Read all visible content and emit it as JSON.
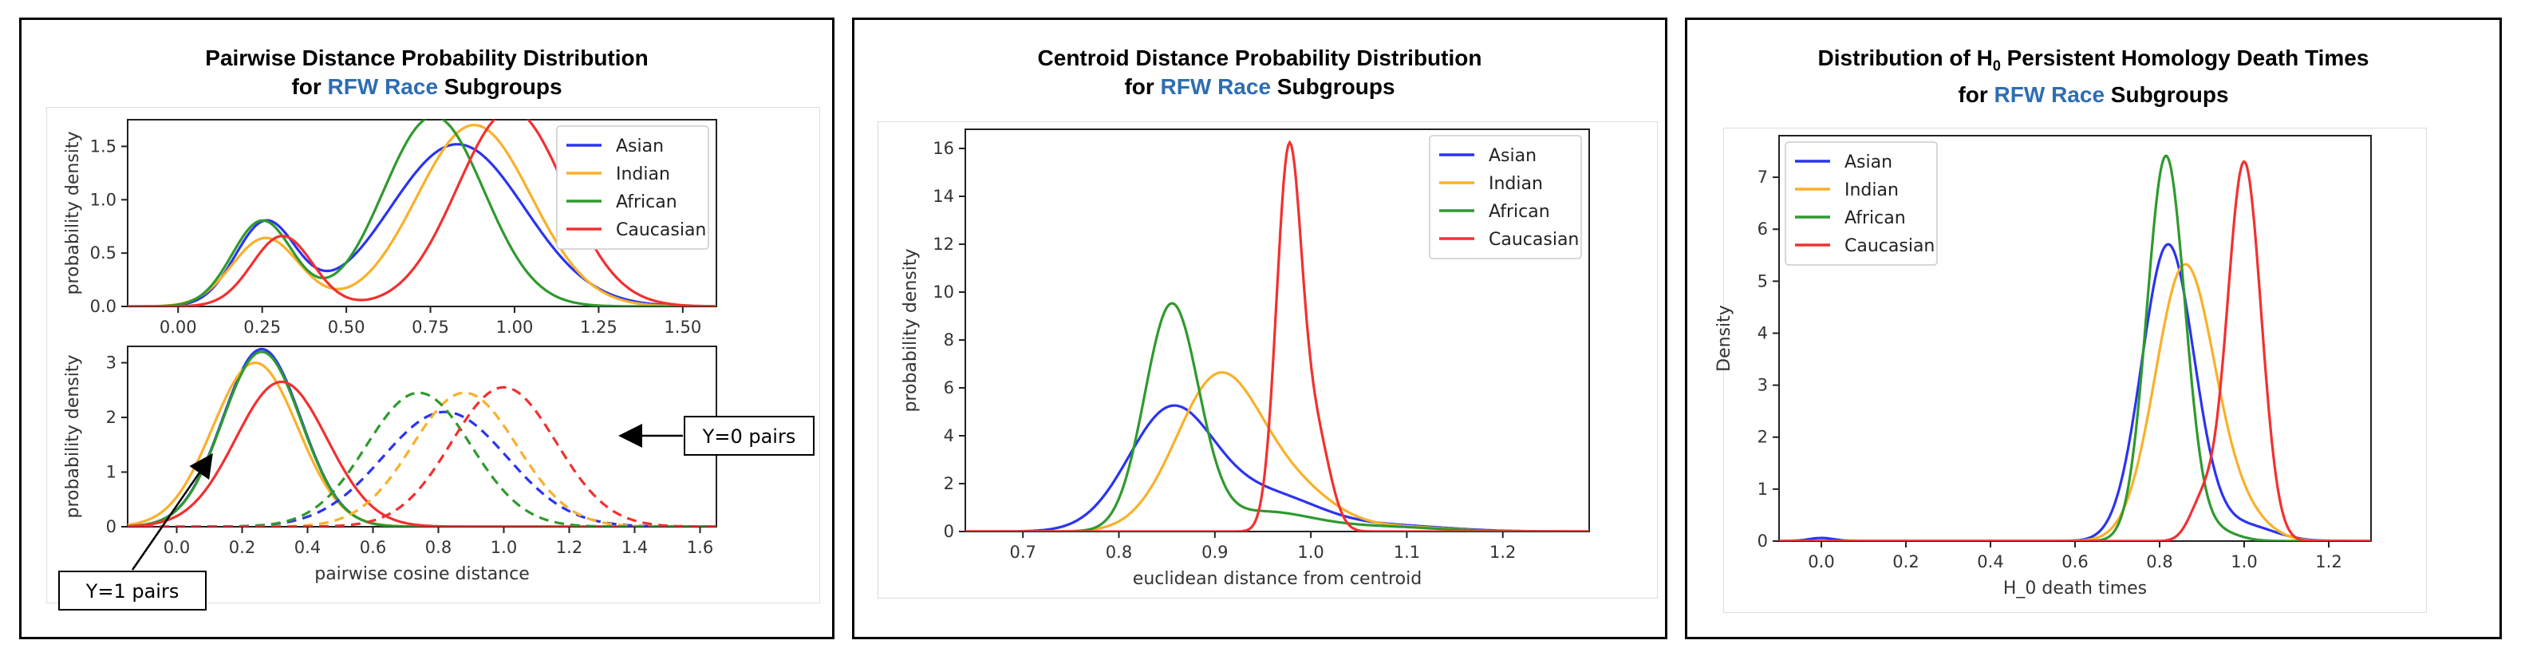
{
  "panels": [
    {
      "title_line1": "Pairwise Distance Probability Distribution",
      "title_line2_pre": "for ",
      "title_line2_hl": "RFW Race",
      "title_line2_post": " Subgroups"
    },
    {
      "title_line1": "Centroid Distance Probability Distribution",
      "title_line2_pre": "for ",
      "title_line2_hl": "RFW Race",
      "title_line2_post": " Subgroups"
    },
    {
      "title_pre": "Distribution of H",
      "title_sub": "0",
      "title_post": " Persistent Homology Death Times",
      "title_line2_pre": "for ",
      "title_line2_hl": "RFW Race",
      "title_line2_post": " Subgroups"
    }
  ],
  "annotations": {
    "y0": "Y=0 pairs",
    "y1": "Y=1 pairs"
  },
  "colors": {
    "Asian": "#2b34f0",
    "Indian": "#f9b02a",
    "African": "#2e9a2e",
    "Caucasian": "#f23030",
    "highlight": "#2e6db4"
  },
  "chart_data": [
    {
      "id": "pairwise-top",
      "type": "line",
      "title": "",
      "xlabel": "",
      "ylabel": "probability density",
      "xlim": [
        -0.15,
        1.6
      ],
      "ylim": [
        0,
        1.75
      ],
      "xticks": [
        0.0,
        0.25,
        0.5,
        0.75,
        1.0,
        1.25,
        1.5
      ],
      "xtick_labels": [
        "0.00",
        "0.25",
        "0.50",
        "0.75",
        "1.00",
        "1.25",
        "1.50"
      ],
      "yticks": [
        0.0,
        0.5,
        1.0,
        1.5
      ],
      "ytick_labels": [
        "0.0",
        "0.5",
        "1.0",
        "1.5"
      ],
      "legend": [
        "Asian",
        "Indian",
        "African",
        "Caucasian"
      ],
      "legend_position": "top-right",
      "series": [
        {
          "name": "Asian",
          "components": [
            [
              0.78,
              0.26,
              0.09
            ],
            [
              1.52,
              0.83,
              0.2
            ]
          ]
        },
        {
          "name": "Indian",
          "components": [
            [
              0.64,
              0.26,
              0.1
            ],
            [
              1.7,
              0.88,
              0.17
            ]
          ]
        },
        {
          "name": "African",
          "components": [
            [
              0.8,
              0.25,
              0.09
            ],
            [
              1.78,
              0.76,
              0.15
            ]
          ]
        },
        {
          "name": "Caucasian",
          "components": [
            [
              0.66,
              0.31,
              0.09
            ],
            [
              1.84,
              0.99,
              0.16
            ]
          ]
        }
      ]
    },
    {
      "id": "pairwise-bottom",
      "type": "line",
      "title": "",
      "xlabel": "pairwise cosine distance",
      "ylabel": "probability density",
      "xlim": [
        -0.15,
        1.65
      ],
      "ylim": [
        0,
        3.3
      ],
      "xticks": [
        0.0,
        0.2,
        0.4,
        0.6,
        0.8,
        1.0,
        1.2,
        1.4,
        1.6
      ],
      "xtick_labels": [
        "0.0",
        "0.2",
        "0.4",
        "0.6",
        "0.8",
        "1.0",
        "1.2",
        "1.4",
        "1.6"
      ],
      "yticks": [
        0,
        1,
        2,
        3
      ],
      "ytick_labels": [
        "0",
        "1",
        "2",
        "3"
      ],
      "series": [
        {
          "name": "Asian",
          "style": "solid",
          "components": [
            [
              3.25,
              0.26,
              0.12
            ]
          ]
        },
        {
          "name": "Indian",
          "style": "solid",
          "components": [
            [
              3.0,
              0.24,
              0.13
            ]
          ]
        },
        {
          "name": "African",
          "style": "solid",
          "components": [
            [
              3.2,
              0.26,
              0.12
            ]
          ]
        },
        {
          "name": "Caucasian",
          "style": "solid",
          "components": [
            [
              2.65,
              0.32,
              0.14
            ]
          ]
        },
        {
          "name": "Asian",
          "style": "dashed",
          "components": [
            [
              2.1,
              0.82,
              0.19
            ]
          ]
        },
        {
          "name": "Indian",
          "style": "dashed",
          "components": [
            [
              2.45,
              0.88,
              0.16
            ]
          ]
        },
        {
          "name": "African",
          "style": "dashed",
          "components": [
            [
              2.45,
              0.74,
              0.16
            ]
          ]
        },
        {
          "name": "Caucasian",
          "style": "dashed",
          "components": [
            [
              2.55,
              1.0,
              0.16
            ]
          ]
        }
      ]
    },
    {
      "id": "centroid",
      "type": "line",
      "title": "",
      "xlabel": "euclidean distance from centroid",
      "ylabel": "probability density",
      "xlim": [
        0.64,
        1.29
      ],
      "ylim": [
        0,
        16.8
      ],
      "xticks": [
        0.7,
        0.8,
        0.9,
        1.0,
        1.1,
        1.2
      ],
      "xtick_labels": [
        "0.7",
        "0.8",
        "0.9",
        "1.0",
        "1.1",
        "1.2"
      ],
      "yticks": [
        0,
        2,
        4,
        6,
        8,
        10,
        12,
        14,
        16
      ],
      "ytick_labels": [
        "0",
        "2",
        "4",
        "6",
        "8",
        "10",
        "12",
        "14",
        "16"
      ],
      "legend": [
        "Asian",
        "Indian",
        "African",
        "Caucasian"
      ],
      "legend_position": "top-right",
      "series": [
        {
          "name": "Asian",
          "components": [
            [
              5.1,
              0.855,
              0.045
            ],
            [
              1.4,
              0.96,
              0.05
            ],
            [
              0.25,
              1.08,
              0.06
            ]
          ]
        },
        {
          "name": "Indian",
          "components": [
            [
              6.5,
              0.905,
              0.045
            ],
            [
              1.3,
              0.99,
              0.04
            ],
            [
              0.2,
              1.09,
              0.05
            ]
          ]
        },
        {
          "name": "African",
          "components": [
            [
              9.4,
              0.855,
              0.028
            ],
            [
              0.8,
              0.95,
              0.05
            ],
            [
              0.2,
              1.07,
              0.06
            ]
          ]
        },
        {
          "name": "Caucasian",
          "components": [
            [
              15.5,
              0.977,
              0.013
            ],
            [
              4.0,
              1.005,
              0.015
            ]
          ]
        }
      ]
    },
    {
      "id": "h0-death",
      "type": "line",
      "title": "",
      "xlabel": "H_0 death times",
      "ylabel": "Density",
      "xlim": [
        -0.1,
        1.3
      ],
      "ylim": [
        0,
        7.8
      ],
      "xticks": [
        0.0,
        0.2,
        0.4,
        0.6,
        0.8,
        1.0,
        1.2
      ],
      "xtick_labels": [
        "0.0",
        "0.2",
        "0.4",
        "0.6",
        "0.8",
        "1.0",
        "1.2"
      ],
      "yticks": [
        0,
        1,
        2,
        3,
        4,
        5,
        6,
        7
      ],
      "ytick_labels": [
        "0",
        "1",
        "2",
        "3",
        "4",
        "5",
        "6",
        "7"
      ],
      "legend": [
        "Asian",
        "Indian",
        "African",
        "Caucasian"
      ],
      "legend_position": "top-left",
      "series": [
        {
          "name": "Asian",
          "components": [
            [
              5.7,
              0.82,
              0.062
            ],
            [
              0.3,
              1.0,
              0.07
            ],
            [
              0.06,
              0.0,
              0.03
            ]
          ]
        },
        {
          "name": "Indian",
          "components": [
            [
              5.3,
              0.86,
              0.07
            ],
            [
              0.4,
              1.0,
              0.06
            ]
          ]
        },
        {
          "name": "African",
          "components": [
            [
              7.4,
              0.815,
              0.045
            ],
            [
              0.2,
              0.93,
              0.05
            ]
          ]
        },
        {
          "name": "Caucasian",
          "components": [
            [
              7.3,
              1.0,
              0.04
            ],
            [
              0.7,
              0.9,
              0.03
            ]
          ]
        }
      ]
    }
  ]
}
